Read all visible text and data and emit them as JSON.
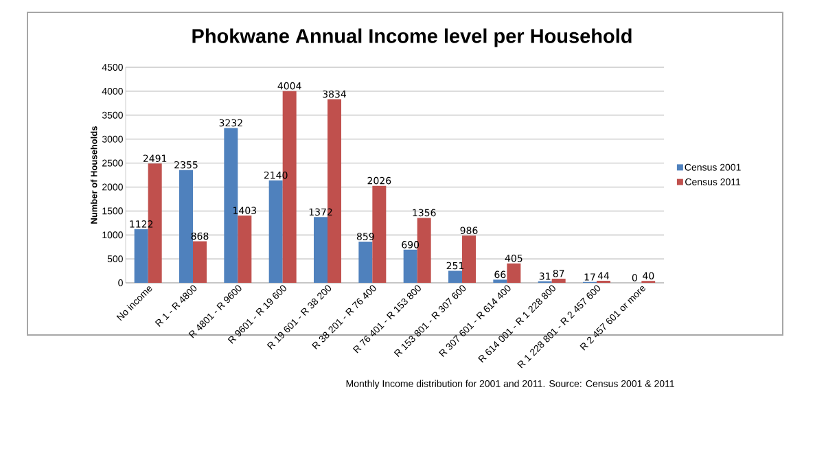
{
  "chart_data": {
    "type": "bar",
    "title": "Phokwane Annual Income level per Household",
    "ylabel": "Number of Households",
    "categories": [
      "No income",
      "R 1 - R 4800",
      "R 4801 - R 9600",
      "R 9601 - R 19 600",
      "R 19 601 - R 38 200",
      "R 38 201 - R 76 400",
      "R 76 401 - R 153 800",
      "R 153 801 - R 307 600",
      "R 307 601 - R 614 400",
      "R 614 001 - R 1 228 800",
      "R 1 228 801 - R 2 457 600",
      "R 2 457 601 or more"
    ],
    "series": [
      {
        "name": "Census 2001",
        "color": "#4f81bd",
        "values": [
          1122,
          2355,
          3232,
          2140,
          1372,
          859,
          690,
          251,
          66,
          31,
          17,
          0
        ]
      },
      {
        "name": "Census 2011",
        "color": "#c0504d",
        "values": [
          2491,
          868,
          1403,
          4004,
          3834,
          2026,
          1356,
          986,
          405,
          87,
          44,
          40
        ]
      }
    ],
    "ylim": [
      0,
      4500
    ],
    "yticks": [
      0,
      500,
      1000,
      1500,
      2000,
      2500,
      3000,
      3500,
      4000,
      4500
    ],
    "grid": "y",
    "legend": "right",
    "data_labels": true,
    "annotations": [
      "Monthly Income distribution for 2001 and 2011. Source: Census 2001 & 2011"
    ]
  }
}
